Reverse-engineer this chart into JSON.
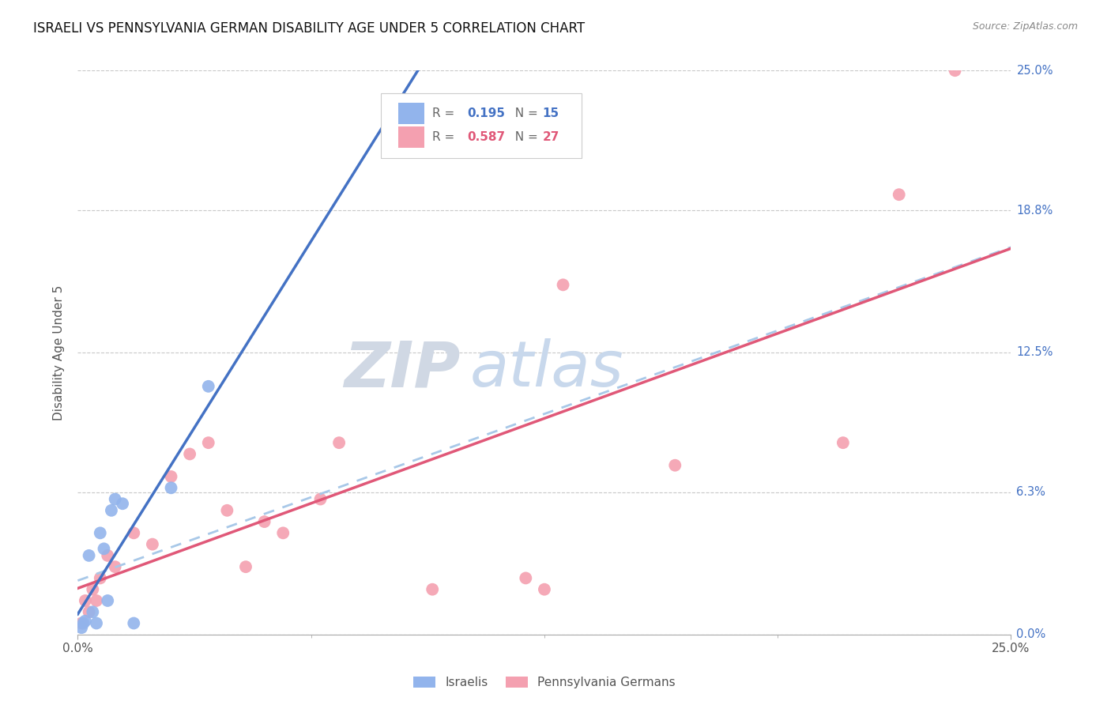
{
  "title": "ISRAELI VS PENNSYLVANIA GERMAN DISABILITY AGE UNDER 5 CORRELATION CHART",
  "source": "Source: ZipAtlas.com",
  "ylabel": "Disability Age Under 5",
  "ytick_labels": [
    "0.0%",
    "6.3%",
    "12.5%",
    "18.8%",
    "25.0%"
  ],
  "ytick_values": [
    0,
    6.3,
    12.5,
    18.8,
    25.0
  ],
  "xtick_labels": [
    "0.0%",
    "25.0%"
  ],
  "xtick_values": [
    0,
    25.0
  ],
  "xlim": [
    0,
    25.0
  ],
  "ylim": [
    0,
    25.0
  ],
  "israeli_R": 0.195,
  "israeli_N": 15,
  "pa_german_R": 0.587,
  "pa_german_N": 27,
  "israeli_color": "#92B4EC",
  "pa_german_color": "#F4A0B0",
  "israeli_line_color": "#4472C4",
  "pa_german_line_color": "#E05878",
  "combined_line_color": "#A8C8E8",
  "watermark_zip": "ZIP",
  "watermark_atlas": "atlas",
  "israelis_x": [
    0.1,
    0.15,
    0.2,
    0.3,
    0.4,
    0.5,
    0.6,
    0.7,
    0.8,
    0.9,
    1.0,
    1.2,
    1.5,
    2.5,
    3.5
  ],
  "israelis_y": [
    0.3,
    0.5,
    0.6,
    3.5,
    1.0,
    0.5,
    4.5,
    3.8,
    1.5,
    5.5,
    6.0,
    5.8,
    0.5,
    6.5,
    11.0
  ],
  "pa_german_x": [
    0.1,
    0.2,
    0.3,
    0.4,
    0.5,
    0.6,
    0.8,
    1.0,
    1.5,
    2.0,
    2.5,
    3.0,
    3.5,
    4.0,
    4.5,
    5.0,
    5.5,
    6.5,
    7.0,
    9.5,
    12.0,
    12.5,
    13.0,
    16.0,
    20.5,
    22.0,
    23.5
  ],
  "pa_german_y": [
    0.5,
    1.5,
    1.0,
    2.0,
    1.5,
    2.5,
    3.5,
    3.0,
    4.5,
    4.0,
    7.0,
    8.0,
    8.5,
    5.5,
    3.0,
    5.0,
    4.5,
    6.0,
    8.5,
    2.0,
    2.5,
    2.0,
    15.5,
    7.5,
    8.5,
    19.5,
    25.0
  ]
}
